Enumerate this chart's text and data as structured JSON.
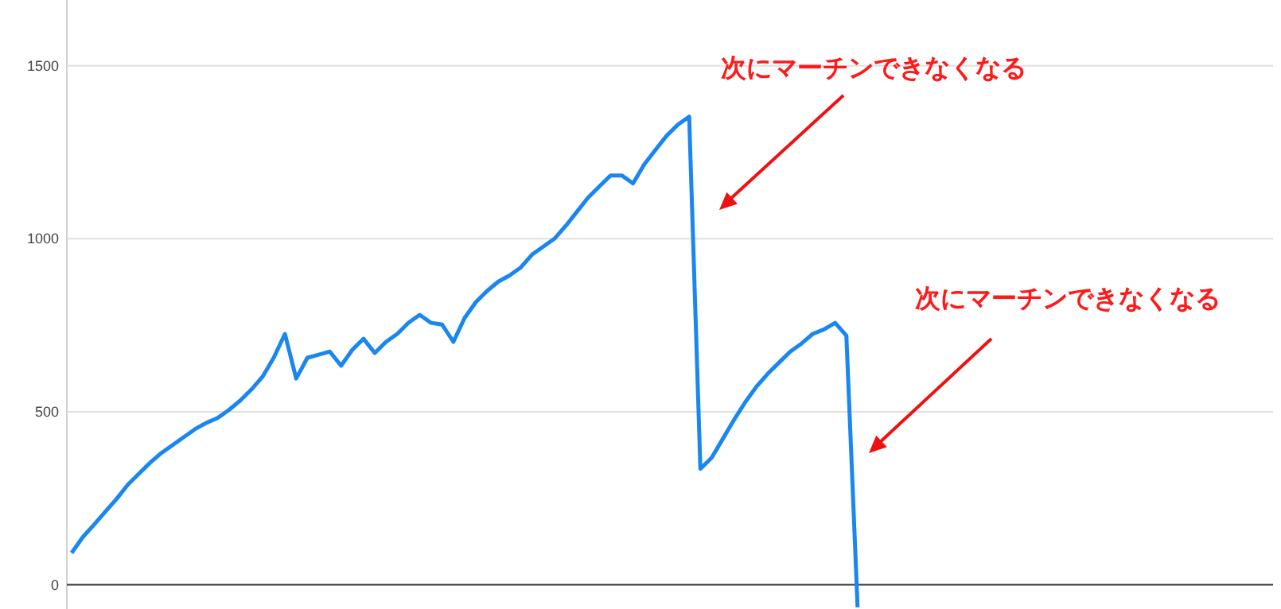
{
  "chart_data": {
    "type": "line",
    "categories": [
      null,
      null,
      null,
      null,
      null,
      null,
      null,
      null,
      null,
      null,
      null,
      null,
      null,
      null,
      null,
      null,
      null,
      null,
      null,
      null,
      null,
      null,
      null,
      null,
      null,
      null,
      null,
      null,
      null,
      null,
      null,
      null,
      null,
      null,
      null,
      null,
      null,
      null,
      null,
      null,
      null,
      null,
      null,
      null,
      null,
      null,
      null,
      null,
      null,
      null,
      null,
      null,
      null,
      null,
      null,
      null,
      null,
      null,
      null,
      null,
      null,
      null,
      null,
      null,
      null,
      null,
      null,
      null,
      null,
      null,
      null,
      null,
      null,
      null,
      null,
      null,
      null,
      null,
      null,
      null,
      null,
      null,
      null,
      null,
      null,
      null,
      null,
      null,
      null,
      null,
      null,
      null,
      null,
      null,
      null,
      null,
      null,
      null,
      null,
      null,
      null,
      null,
      null,
      null,
      null,
      null,
      null,
      null
    ],
    "series": [
      {
        "color": "#1a86f0",
        "values": [
          92,
          138,
          174,
          211,
          248,
          289,
          321,
          353,
          381,
          404,
          427,
          450,
          468,
          482,
          505,
          532,
          564,
          601,
          656,
          725,
          596,
          656,
          665,
          674,
          633,
          679,
          711,
          670,
          702,
          725,
          757,
          780,
          757,
          752,
          702,
          771,
          817,
          849,
          876,
          894,
          917,
          954,
          977,
          1000,
          1037,
          1078,
          1119,
          1151,
          1183,
          1183,
          1160,
          1215,
          1257,
          1298,
          1330,
          1353,
          335,
          367,
          422,
          477,
          528,
          573,
          610,
          642,
          674,
          697,
          725,
          738,
          757,
          720,
          -65,
          null,
          null,
          null,
          null,
          null,
          null,
          null,
          null,
          null,
          null,
          null,
          null,
          null,
          null,
          null,
          null,
          null,
          null,
          null,
          null,
          null,
          null,
          null,
          null,
          null,
          null,
          null,
          null,
          null,
          null,
          null,
          null,
          null,
          null,
          null,
          null,
          null
        ]
      }
    ],
    "ylim": [
      -70,
      1690
    ],
    "yticks": [
      0,
      500,
      1000,
      1500
    ],
    "grid": "y",
    "tick_labels": "y",
    "annotations": [
      "次にマーチンできなくなる",
      "次にマーチンできなくなる"
    ]
  }
}
